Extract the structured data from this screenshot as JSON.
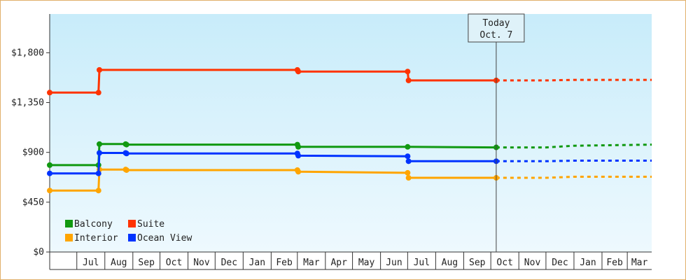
{
  "chart_data": {
    "type": "line",
    "step": true,
    "title": "",
    "xlabel": "",
    "ylabel": "",
    "ylim": [
      0,
      2150
    ],
    "y_ticks": [
      "$0",
      "$450",
      "$900",
      "$1,350",
      "$1,800"
    ],
    "y_tick_values": [
      0,
      450,
      900,
      1350,
      1800
    ],
    "x_tick_labels": [
      "Jul",
      "Aug",
      "Sep",
      "Oct",
      "Nov",
      "Dec",
      "Jan",
      "Feb",
      "Mar",
      "Apr",
      "May",
      "Jun",
      "Jul",
      "Aug",
      "Sep",
      "Oct",
      "Nov",
      "Dec",
      "Jan",
      "Feb",
      "Mar"
    ],
    "x_start": "2019-06-01",
    "x_end": "2021-03-28",
    "today": {
      "date": "2020-10-07",
      "label_line1": "Today",
      "label_line2": "Oct. 7"
    },
    "grid": false,
    "legend": "bottom-left",
    "series": [
      {
        "name": "Balcony",
        "color": "#119911",
        "points": [
          [
            "2019-06-01",
            785
          ],
          [
            "2019-07-25",
            785
          ],
          [
            "2019-07-26",
            975
          ],
          [
            "2019-08-24",
            975
          ],
          [
            "2019-08-25",
            970
          ],
          [
            "2020-03-01",
            970
          ],
          [
            "2020-03-02",
            950
          ],
          [
            "2020-07-01",
            950
          ],
          [
            "2020-10-07",
            945
          ]
        ],
        "markers": [
          "2019-06-01",
          "2019-07-25",
          "2019-07-26",
          "2019-08-24",
          "2019-08-25",
          "2020-03-01",
          "2020-03-02",
          "2020-07-01",
          "2020-10-07"
        ],
        "forecast": [
          [
            "2020-10-07",
            945
          ],
          [
            "2020-12-01",
            945
          ],
          [
            "2021-01-01",
            960
          ],
          [
            "2021-03-28",
            970
          ]
        ]
      },
      {
        "name": "Suite",
        "color": "#ff3300",
        "points": [
          [
            "2019-06-01",
            1440
          ],
          [
            "2019-07-25",
            1440
          ],
          [
            "2019-07-26",
            1645
          ],
          [
            "2020-03-01",
            1645
          ],
          [
            "2020-03-02",
            1630
          ],
          [
            "2020-07-01",
            1630
          ],
          [
            "2020-07-02",
            1550
          ],
          [
            "2020-10-07",
            1550
          ]
        ],
        "markers": [
          "2019-06-01",
          "2019-07-25",
          "2019-07-26",
          "2020-03-01",
          "2020-03-02",
          "2020-07-01",
          "2020-07-02",
          "2020-10-07"
        ],
        "forecast": [
          [
            "2020-10-07",
            1550
          ],
          [
            "2020-12-01",
            1550
          ],
          [
            "2021-01-01",
            1555
          ],
          [
            "2021-03-28",
            1555
          ]
        ]
      },
      {
        "name": "Interior",
        "color": "#ffa500",
        "points": [
          [
            "2019-06-01",
            555
          ],
          [
            "2019-07-25",
            555
          ],
          [
            "2019-07-26",
            745
          ],
          [
            "2019-08-24",
            745
          ],
          [
            "2019-08-25",
            740
          ],
          [
            "2020-03-01",
            740
          ],
          [
            "2020-03-02",
            725
          ],
          [
            "2020-07-01",
            715
          ],
          [
            "2020-07-02",
            670
          ],
          [
            "2020-10-07",
            670
          ]
        ],
        "markers": [
          "2019-06-01",
          "2019-07-25",
          "2019-07-26",
          "2019-08-24",
          "2019-08-25",
          "2020-03-01",
          "2020-03-02",
          "2020-07-01",
          "2020-07-02",
          "2020-10-07"
        ],
        "forecast": [
          [
            "2020-10-07",
            670
          ],
          [
            "2020-12-01",
            670
          ],
          [
            "2021-01-01",
            680
          ],
          [
            "2021-03-28",
            680
          ]
        ]
      },
      {
        "name": "Ocean View",
        "color": "#0033ff",
        "points": [
          [
            "2019-06-01",
            710
          ],
          [
            "2019-07-25",
            710
          ],
          [
            "2019-07-26",
            895
          ],
          [
            "2019-08-24",
            895
          ],
          [
            "2019-08-25",
            890
          ],
          [
            "2020-03-01",
            890
          ],
          [
            "2020-03-02",
            870
          ],
          [
            "2020-07-01",
            865
          ],
          [
            "2020-07-02",
            820
          ],
          [
            "2020-10-07",
            820
          ]
        ],
        "markers": [
          "2019-06-01",
          "2019-07-25",
          "2019-07-26",
          "2019-08-24",
          "2019-08-25",
          "2020-03-01",
          "2020-03-02",
          "2020-07-01",
          "2020-07-02",
          "2020-10-07"
        ],
        "forecast": [
          [
            "2020-10-07",
            820
          ],
          [
            "2020-12-01",
            820
          ],
          [
            "2021-01-01",
            825
          ],
          [
            "2021-03-28",
            825
          ]
        ]
      }
    ],
    "legend_order": [
      "Balcony",
      "Suite",
      "Interior",
      "Ocean View"
    ],
    "colors": {
      "plot_bg_top": "#c8ecfa",
      "plot_bg_bottom": "#eef9fe",
      "frame_border": "#e0b06a"
    }
  }
}
